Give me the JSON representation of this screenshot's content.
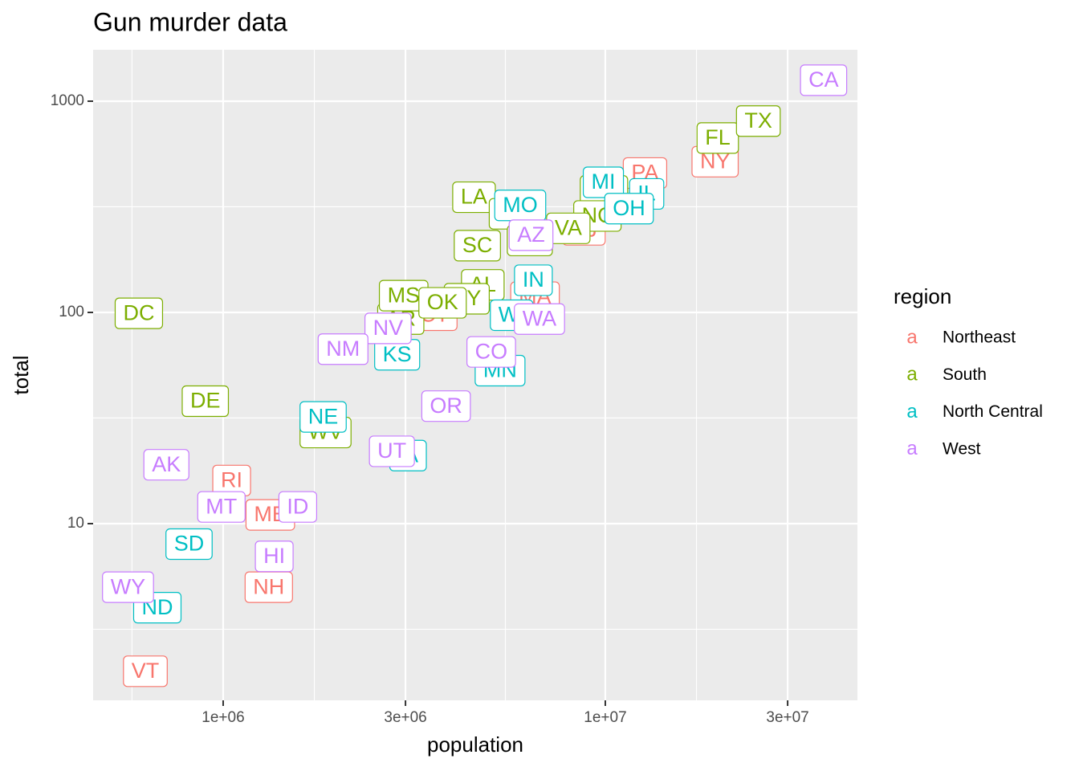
{
  "chart_data": {
    "type": "scatter",
    "title": "Gun murder data",
    "xlabel": "population",
    "ylabel": "total",
    "xscale": "log",
    "yscale": "log",
    "xlim": [
      456800,
      45680000
    ],
    "ylim": [
      1.457,
      1751
    ],
    "xticks": [
      {
        "value": 1000000,
        "label": "1e+06"
      },
      {
        "value": 3000000,
        "label": "3e+06"
      },
      {
        "value": 10000000,
        "label": "1e+07"
      },
      {
        "value": 30000000,
        "label": "3e+07"
      }
    ],
    "yticks": [
      10,
      100,
      1000
    ],
    "grid": true,
    "legend_title": "region",
    "legend_key": "a",
    "legend_position": "right",
    "series": [
      {
        "name": "Northeast",
        "color": "#F8766D",
        "labels": [
          "CT",
          "ME",
          "MA",
          "NH",
          "NJ",
          "NY",
          "PA",
          "RI",
          "VT"
        ],
        "x": [
          3574097,
          1328361,
          6547629,
          1316470,
          8791894,
          19378102,
          12702379,
          1052567,
          625741
        ],
        "values": [
          97,
          11,
          118,
          5,
          246,
          517,
          457,
          16,
          2
        ]
      },
      {
        "name": "South",
        "color": "#7CAE00",
        "labels": [
          "AL",
          "AR",
          "DE",
          "DC",
          "FL",
          "GA",
          "KY",
          "LA",
          "MD",
          "MS",
          "NC",
          "OK",
          "SC",
          "TN",
          "TX",
          "VA",
          "WV"
        ],
        "x": [
          4779736,
          2915918,
          897934,
          601723,
          19687653,
          9920000,
          4339367,
          4533372,
          5773552,
          2967297,
          9535483,
          3751351,
          4625364,
          6346105,
          25145561,
          8001024,
          1852994
        ],
        "values": [
          135,
          93,
          38,
          99,
          669,
          376,
          116,
          351,
          293,
          120,
          286,
          111,
          207,
          219,
          805,
          250,
          27
        ]
      },
      {
        "name": "North Central",
        "color": "#00BFC4",
        "labels": [
          "IL",
          "IN",
          "IA",
          "KS",
          "MI",
          "MN",
          "MO",
          "NE",
          "ND",
          "OH",
          "SD",
          "WI"
        ],
        "x": [
          12830632,
          6483802,
          3046355,
          2853118,
          9883640,
          5303925,
          5988927,
          1826341,
          672591,
          11536504,
          814180,
          5686986
        ],
        "values": [
          364,
          142,
          21,
          63,
          413,
          53,
          321,
          32,
          4,
          310,
          8,
          97
        ]
      },
      {
        "name": "West",
        "color": "#C77CFF",
        "labels": [
          "AK",
          "AZ",
          "CA",
          "CO",
          "HI",
          "ID",
          "MT",
          "NV",
          "NM",
          "OR",
          "UT",
          "WA",
          "WY"
        ],
        "x": [
          710231,
          6392017,
          37253956,
          5029196,
          1360301,
          1567582,
          989415,
          2700551,
          2059179,
          3831074,
          2763885,
          6724540,
          563626
        ],
        "values": [
          19,
          232,
          1257,
          65,
          7,
          12,
          12,
          84,
          67,
          36,
          22,
          93,
          5
        ]
      }
    ]
  }
}
